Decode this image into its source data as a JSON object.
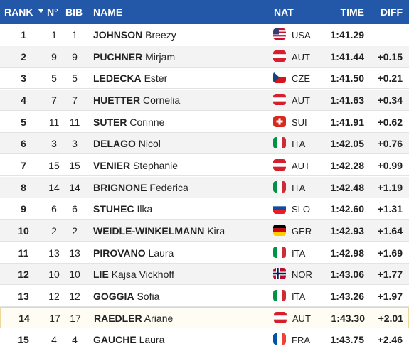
{
  "header": {
    "rank": "RANK",
    "no": "N°",
    "bib": "BIB",
    "name": "NAME",
    "nat": "NAT",
    "time": "TIME",
    "diff": "DIFF"
  },
  "rows": [
    {
      "rank": 1,
      "no": 1,
      "bib": 1,
      "surname": "JOHNSON",
      "first": "Breezy",
      "nat": "USA",
      "time": "1:41.29",
      "diff": null
    },
    {
      "rank": 2,
      "no": 9,
      "bib": 9,
      "surname": "PUCHNER",
      "first": "Mirjam",
      "nat": "AUT",
      "time": "1:41.44",
      "diff": "+0.15"
    },
    {
      "rank": 3,
      "no": 5,
      "bib": 5,
      "surname": "LEDECKA",
      "first": "Ester",
      "nat": "CZE",
      "time": "1:41.50",
      "diff": "+0.21"
    },
    {
      "rank": 4,
      "no": 7,
      "bib": 7,
      "surname": "HUETTER",
      "first": "Cornelia",
      "nat": "AUT",
      "time": "1:41.63",
      "diff": "+0.34"
    },
    {
      "rank": 5,
      "no": 11,
      "bib": 11,
      "surname": "SUTER",
      "first": "Corinne",
      "nat": "SUI",
      "time": "1:41.91",
      "diff": "+0.62"
    },
    {
      "rank": 6,
      "no": 3,
      "bib": 3,
      "surname": "DELAGO",
      "first": "Nicol",
      "nat": "ITA",
      "time": "1:42.05",
      "diff": "+0.76"
    },
    {
      "rank": 7,
      "no": 15,
      "bib": 15,
      "surname": "VENIER",
      "first": "Stephanie",
      "nat": "AUT",
      "time": "1:42.28",
      "diff": "+0.99"
    },
    {
      "rank": 8,
      "no": 14,
      "bib": 14,
      "surname": "BRIGNONE",
      "first": "Federica",
      "nat": "ITA",
      "time": "1:42.48",
      "diff": "+1.19"
    },
    {
      "rank": 9,
      "no": 6,
      "bib": 6,
      "surname": "STUHEC",
      "first": "Ilka",
      "nat": "SLO",
      "time": "1:42.60",
      "diff": "+1.31"
    },
    {
      "rank": 10,
      "no": 2,
      "bib": 2,
      "surname": "WEIDLE-WINKELMANN",
      "first": "Kira",
      "nat": "GER",
      "time": "1:42.93",
      "diff": "+1.64"
    },
    {
      "rank": 11,
      "no": 13,
      "bib": 13,
      "surname": "PIROVANO",
      "first": "Laura",
      "nat": "ITA",
      "time": "1:42.98",
      "diff": "+1.69"
    },
    {
      "rank": 12,
      "no": 10,
      "bib": 10,
      "surname": "LIE",
      "first": "Kajsa Vickhoff",
      "nat": "NOR",
      "time": "1:43.06",
      "diff": "+1.77"
    },
    {
      "rank": 13,
      "no": 12,
      "bib": 12,
      "surname": "GOGGIA",
      "first": "Sofia",
      "nat": "ITA",
      "time": "1:43.26",
      "diff": "+1.97"
    },
    {
      "rank": 14,
      "no": 17,
      "bib": 17,
      "surname": "RAEDLER",
      "first": "Ariane",
      "nat": "AUT",
      "time": "1:43.30",
      "diff": "+2.01"
    },
    {
      "rank": 15,
      "no": 4,
      "bib": 4,
      "surname": "GAUCHE",
      "first": "Laura",
      "nat": "FRA",
      "time": "1:43.75",
      "diff": "+2.46"
    }
  ]
}
